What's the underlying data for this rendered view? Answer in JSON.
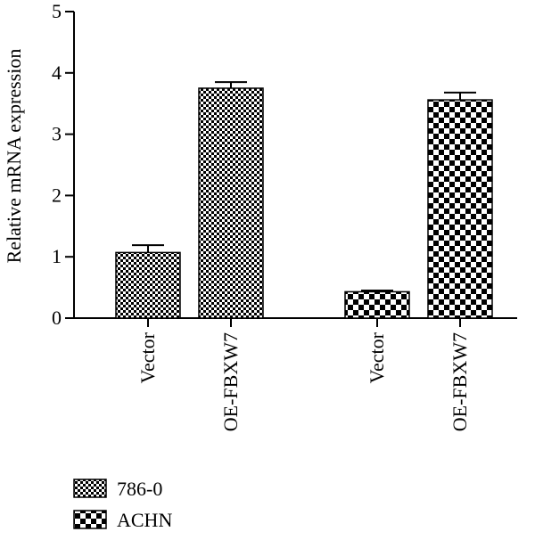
{
  "chart_data": {
    "type": "bar",
    "title": "",
    "xlabel": "",
    "ylabel": "Relative mRNA expression",
    "ylim": [
      0,
      5
    ],
    "yticks": [
      0,
      1,
      2,
      3,
      4,
      5
    ],
    "grid": false,
    "legend_position": "bottom-left",
    "groups": [
      {
        "series": "786-0",
        "bars": [
          {
            "category": "Vector",
            "value": 1.07,
            "error": 0.12
          },
          {
            "category": "OE-FBXW7",
            "value": 3.75,
            "error": 0.1
          }
        ]
      },
      {
        "series": "ACHN",
        "bars": [
          {
            "category": "Vector",
            "value": 0.43,
            "error": 0.02
          },
          {
            "category": "OE-FBXW7",
            "value": 3.56,
            "error": 0.12
          }
        ]
      }
    ],
    "series": [
      {
        "name": "786-0",
        "pattern": "fine-checker",
        "color": "#000000"
      },
      {
        "name": "ACHN",
        "pattern": "coarse-checker",
        "color": "#000000"
      }
    ]
  }
}
